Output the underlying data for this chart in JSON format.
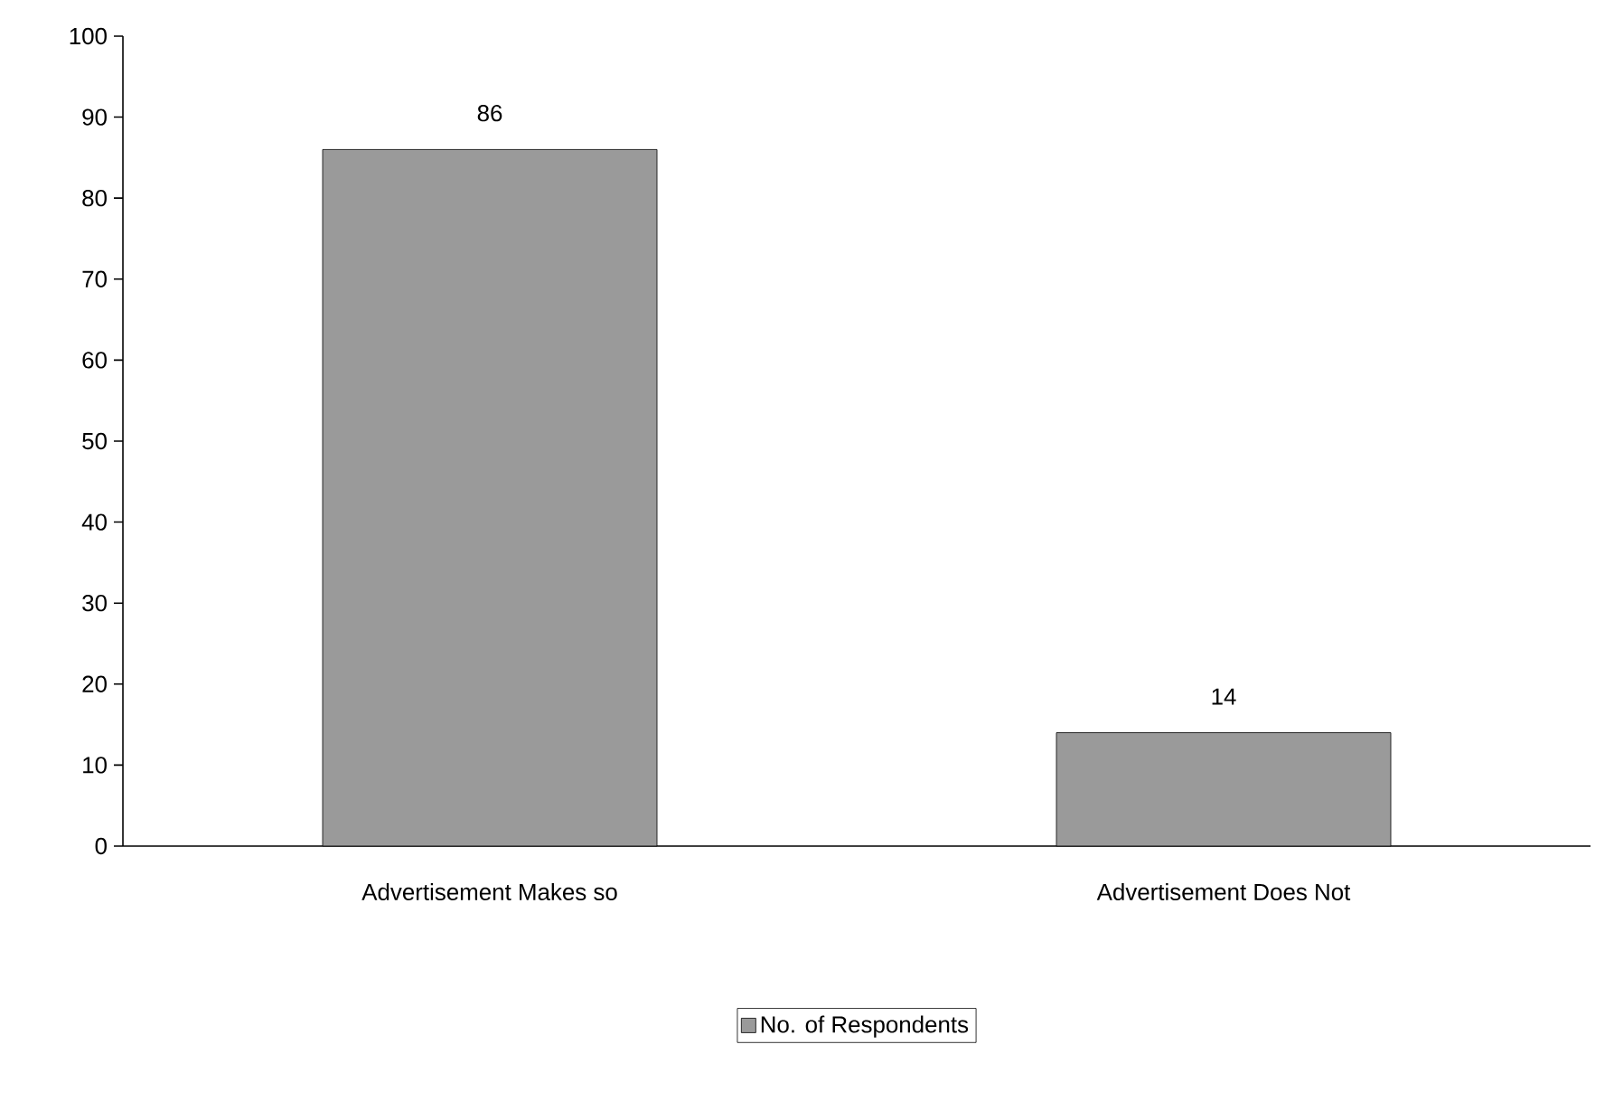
{
  "chart_data": {
    "type": "bar",
    "categories": [
      "Advertisement Makes so",
      "Advertisement Does Not"
    ],
    "series": [
      {
        "name": "No. of Respondents",
        "color": "#9a9a9a",
        "values": [
          86,
          14
        ]
      }
    ],
    "ylim": [
      0,
      100
    ],
    "yticks": [
      0,
      10,
      20,
      30,
      40,
      50,
      60,
      70,
      80,
      90,
      100
    ],
    "data_labels": true,
    "legend": "bottom",
    "grid": false
  }
}
